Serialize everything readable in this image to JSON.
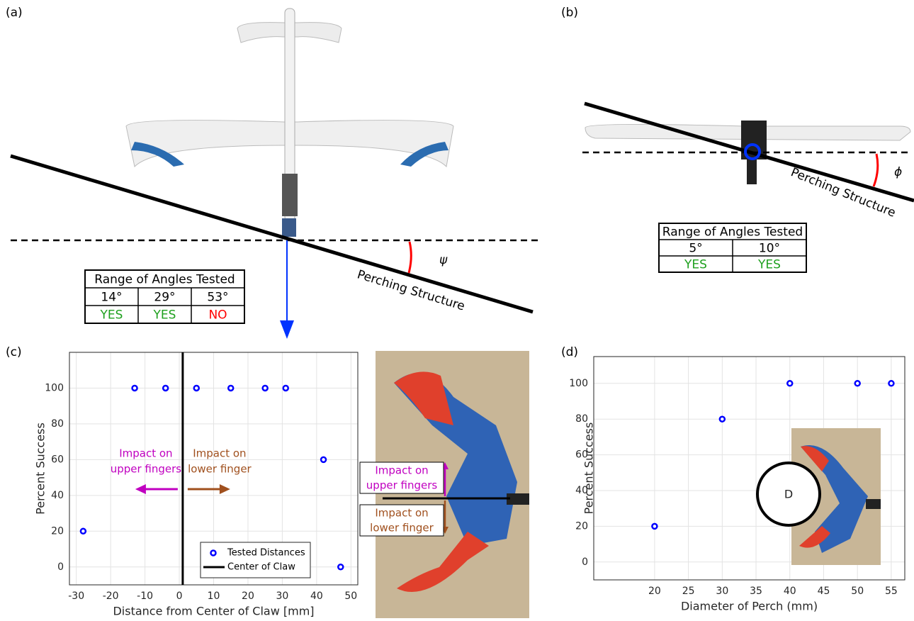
{
  "chart_data": [
    {
      "type": "scatter",
      "x_label": "Distance from Center of Claw [mm]",
      "y_label": "Percent Success",
      "series": [
        {
          "name": "Tested Distances",
          "color": "#0000ff",
          "x": [
            -28,
            -13,
            -4,
            5,
            15,
            25,
            31,
            42,
            47
          ],
          "values": [
            20,
            100,
            100,
            100,
            100,
            100,
            100,
            60,
            0
          ]
        }
      ],
      "vlines": [
        {
          "name": "Center of Claw",
          "x": 1,
          "color": "#000000"
        }
      ],
      "annotations": [
        {
          "lines": [
            "Impact on",
            "upper fingers"
          ],
          "color": "#c000c0"
        },
        {
          "lines": [
            "Impact on",
            "lower finger"
          ],
          "color": "#a0501e"
        }
      ],
      "xlim": [
        -32,
        52
      ],
      "xticks": [
        -30,
        -20,
        -10,
        0,
        10,
        20,
        30,
        40,
        50
      ],
      "ylim": [
        -10,
        120
      ],
      "yticks": [
        0,
        20,
        40,
        60,
        80,
        100
      ],
      "grid": true,
      "legend": "lower-right"
    },
    {
      "type": "scatter",
      "x_label": "Diameter of Perch (mm)",
      "y_label": "Percent Success",
      "series": [
        {
          "color": "#0000ff",
          "x": [
            20,
            30,
            40,
            50,
            55
          ],
          "values": [
            20,
            80,
            100,
            100,
            100
          ]
        }
      ],
      "xlim": [
        11,
        57
      ],
      "xticks": [
        20,
        25,
        30,
        35,
        40,
        45,
        50,
        55
      ],
      "ylim": [
        -10,
        115
      ],
      "yticks": [
        0,
        20,
        40,
        60,
        80,
        100
      ],
      "grid": true,
      "inset_label": "D"
    }
  ],
  "figure": {
    "panel_a": {
      "label": "(a)",
      "structure_label": "Perching Structure",
      "angle_symbol": "ψ",
      "table": {
        "title": "Range of Angles Tested",
        "angles": [
          "14°",
          "29°",
          "53°"
        ],
        "results": [
          {
            "text": "YES",
            "color": "#1ea01e"
          },
          {
            "text": "YES",
            "color": "#1ea01e"
          },
          {
            "text": "NO",
            "color": "#ff0000"
          }
        ]
      }
    },
    "panel_b": {
      "label": "(b)",
      "structure_label": "Perching Structure",
      "angle_symbol": "ϕ",
      "table": {
        "title": "Range of Angles Tested",
        "angles": [
          "5°",
          "10°"
        ],
        "results": [
          {
            "text": "YES",
            "color": "#1ea01e"
          },
          {
            "text": "YES",
            "color": "#1ea01e"
          }
        ]
      }
    },
    "panel_c": {
      "label": "(c)",
      "photo_labels": [
        {
          "lines": [
            "Impact on",
            "upper fingers"
          ],
          "color": "#c000c0"
        },
        {
          "lines": [
            "Impact on",
            "lower finger"
          ],
          "color": "#a0501e"
        }
      ]
    },
    "panel_d": {
      "label": "(d)"
    }
  }
}
